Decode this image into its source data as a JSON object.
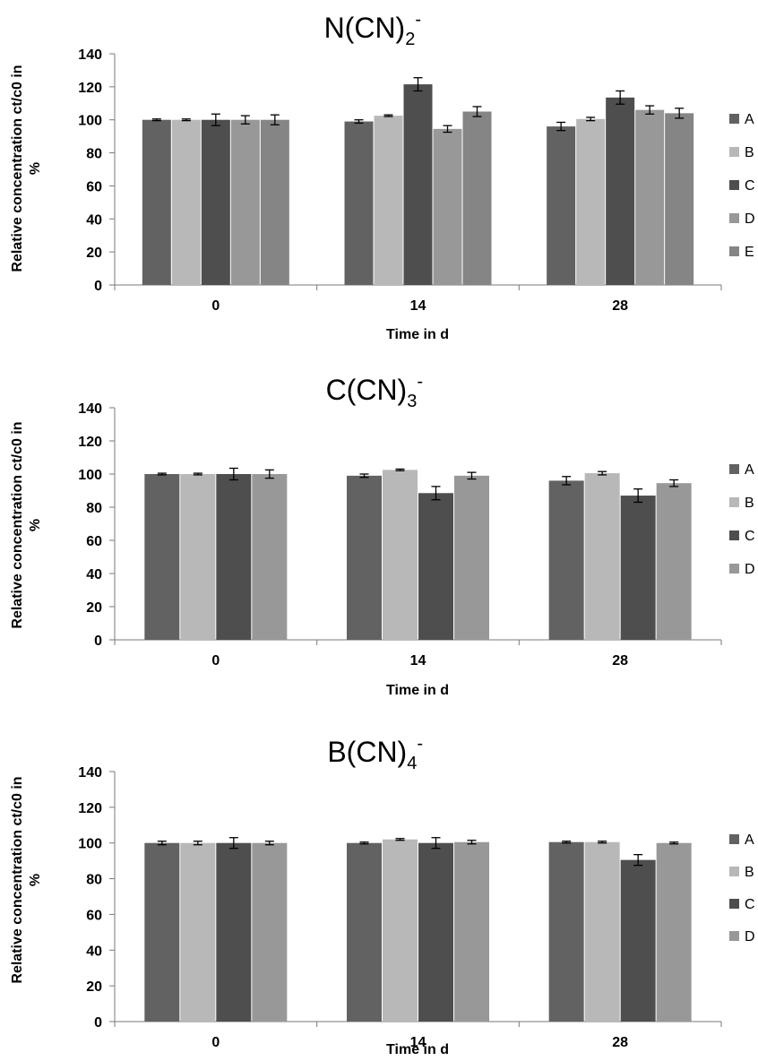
{
  "colors": {
    "A": "#626262",
    "B": "#b8b8b8",
    "C": "#4e4e4e",
    "D": "#989898",
    "E": "#858585"
  },
  "chart_data": [
    {
      "type": "bar",
      "title": {
        "base": "N(CN)",
        "sub": "2",
        "sup": "-"
      },
      "xlabel": "Time in d",
      "ylabel": [
        "Relative concentration ct/c0 in",
        "%"
      ],
      "ylim": [
        0,
        140
      ],
      "yticks": [
        0,
        20,
        40,
        60,
        80,
        100,
        120,
        140
      ],
      "categories": [
        "0",
        "14",
        "28"
      ],
      "grid": false,
      "legend": "right",
      "series": [
        {
          "name": "A",
          "values": [
            100,
            99,
            96
          ],
          "errors": [
            0.5,
            1,
            2.5
          ]
        },
        {
          "name": "B",
          "values": [
            100,
            102.5,
            100.5
          ],
          "errors": [
            0.5,
            0.5,
            1
          ]
        },
        {
          "name": "C",
          "values": [
            100,
            121.5,
            113.5
          ],
          "errors": [
            3.5,
            4,
            4
          ]
        },
        {
          "name": "D",
          "values": [
            100,
            94.5,
            106
          ],
          "errors": [
            2.5,
            2,
            2.5
          ]
        },
        {
          "name": "E",
          "values": [
            100,
            105,
            104
          ],
          "errors": [
            3,
            3,
            3
          ]
        }
      ]
    },
    {
      "type": "bar",
      "title": {
        "base": "C(CN)",
        "sub": "3",
        "sup": "-"
      },
      "xlabel": "Time in d",
      "ylabel": [
        "Relative concentration ct/c0 in",
        "%"
      ],
      "ylim": [
        0,
        140
      ],
      "yticks": [
        0,
        20,
        40,
        60,
        80,
        100,
        120,
        140
      ],
      "categories": [
        "0",
        "14",
        "28"
      ],
      "grid": false,
      "legend": "right",
      "series": [
        {
          "name": "A",
          "values": [
            100,
            99,
            96
          ],
          "errors": [
            0.5,
            1,
            2.5
          ]
        },
        {
          "name": "B",
          "values": [
            100,
            102.5,
            100.5
          ],
          "errors": [
            0.5,
            0.5,
            1
          ]
        },
        {
          "name": "C",
          "values": [
            100,
            88.5,
            87
          ],
          "errors": [
            3.5,
            4,
            4
          ]
        },
        {
          "name": "D",
          "values": [
            100,
            99,
            94.5
          ],
          "errors": [
            2.5,
            2,
            2
          ]
        }
      ]
    },
    {
      "type": "bar",
      "title": {
        "base": "B(CN)",
        "sub": "4",
        "sup": "-"
      },
      "xlabel": "Time in d",
      "ylabel": [
        "Relative concentration ct/c0 in",
        "%"
      ],
      "ylim": [
        0,
        140
      ],
      "yticks": [
        0,
        20,
        40,
        60,
        80,
        100,
        120,
        140
      ],
      "categories": [
        "0",
        "14",
        "28"
      ],
      "grid": false,
      "legend": "right",
      "series": [
        {
          "name": "A",
          "values": [
            100,
            100,
            100.5
          ],
          "errors": [
            1,
            0.5,
            0.5
          ]
        },
        {
          "name": "B",
          "values": [
            100,
            102,
            100.5
          ],
          "errors": [
            1,
            0.5,
            0.5
          ]
        },
        {
          "name": "C",
          "values": [
            100,
            100,
            90.5
          ],
          "errors": [
            3,
            3,
            3
          ]
        },
        {
          "name": "D",
          "values": [
            100,
            100.5,
            100
          ],
          "errors": [
            1,
            1,
            0.5
          ]
        }
      ]
    }
  ]
}
